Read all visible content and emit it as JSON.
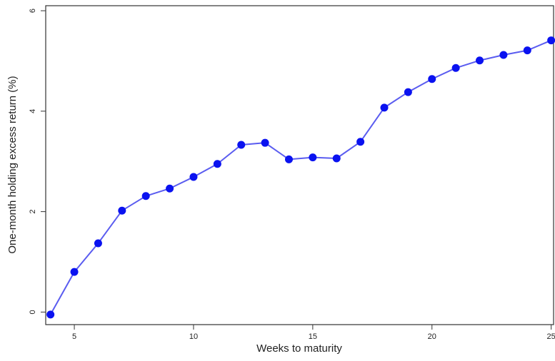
{
  "chart_data": {
    "type": "line",
    "title": "",
    "xlabel": "Weeks to maturity",
    "ylabel": "One-month holding excess return (%)",
    "x": [
      4,
      5,
      6,
      7,
      8,
      9,
      10,
      11,
      12,
      13,
      14,
      15,
      16,
      17,
      18,
      19,
      20,
      21,
      22,
      23,
      24,
      25
    ],
    "series": [
      {
        "values": [
          -0.05,
          0.8,
          1.37,
          2.02,
          2.31,
          2.46,
          2.69,
          2.95,
          3.33,
          3.37,
          3.04,
          3.08,
          3.06,
          3.39,
          4.07,
          4.38,
          4.64,
          4.86,
          5.01,
          5.12,
          5.21,
          5.41
        ],
        "color": "#0a12f0"
      }
    ],
    "xlim": [
      3.8,
      25.1
    ],
    "ylim": [
      -0.25,
      6.1
    ],
    "xticks": [
      5,
      10,
      15,
      20,
      25
    ],
    "xtick_labels": [
      "5",
      "10",
      "15",
      "20",
      "25"
    ],
    "yticks": [
      0,
      2,
      4,
      6
    ],
    "ytick_labels": [
      "0",
      "2",
      "4",
      "6"
    ],
    "grid": false,
    "line_color": "#5a5cf0",
    "marker_color": "#0a12f0"
  }
}
